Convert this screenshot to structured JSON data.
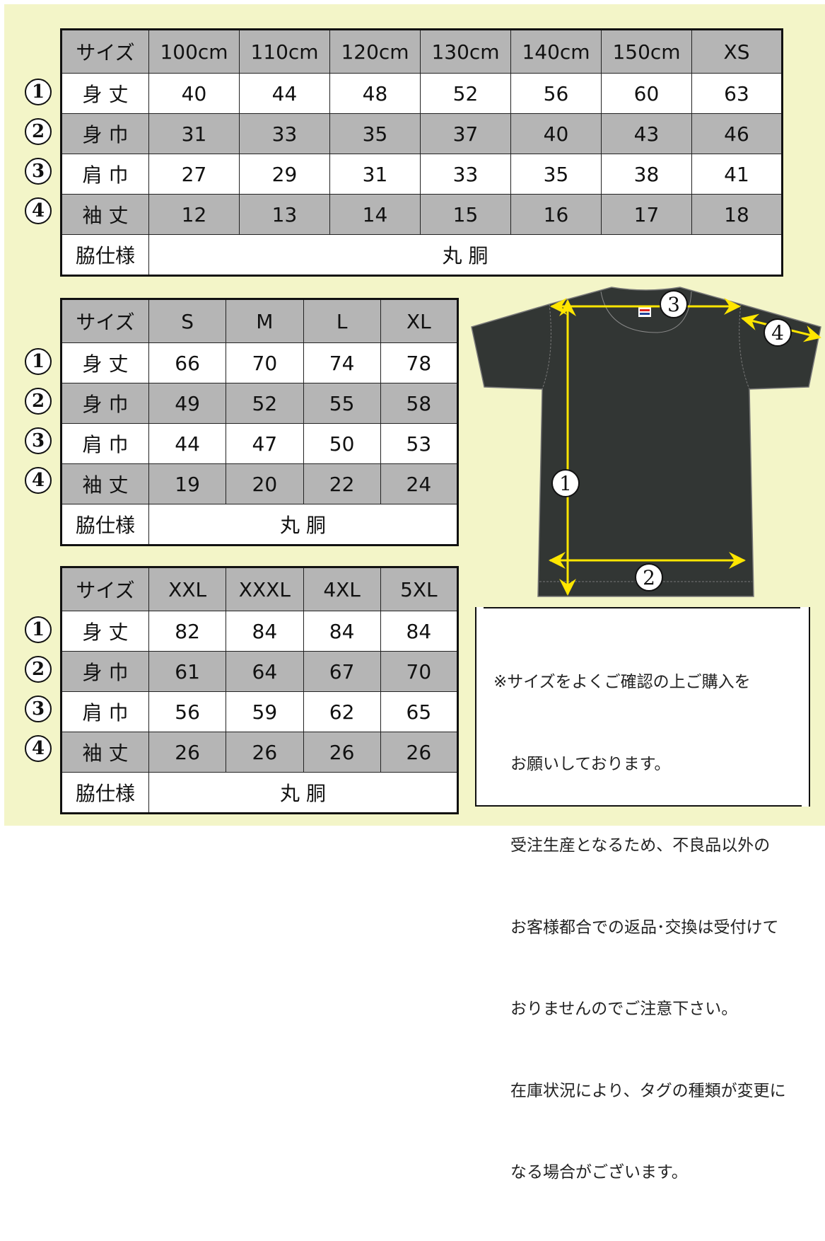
{
  "colors": {
    "background": "#f3f5c8",
    "header_gray": "#b5b5b5",
    "shirt": "#323634",
    "arrow": "#ffe600"
  },
  "tables": [
    {
      "header": [
        "サイズ",
        "100cm",
        "110cm",
        "120cm",
        "130cm",
        "140cm",
        "150cm",
        "XS"
      ],
      "rows": [
        {
          "num": "1",
          "label": "身 丈",
          "values": [
            "40",
            "44",
            "48",
            "52",
            "56",
            "60",
            "63"
          ]
        },
        {
          "num": "2",
          "label": "身 巾",
          "values": [
            "31",
            "33",
            "35",
            "37",
            "40",
            "43",
            "46"
          ]
        },
        {
          "num": "3",
          "label": "肩 巾",
          "values": [
            "27",
            "29",
            "31",
            "33",
            "35",
            "38",
            "41"
          ]
        },
        {
          "num": "4",
          "label": "袖 丈",
          "values": [
            "12",
            "13",
            "14",
            "15",
            "16",
            "17",
            "18"
          ]
        }
      ],
      "side_label": "脇仕様",
      "side_value": "丸 胴"
    },
    {
      "header": [
        "サイズ",
        "S",
        "M",
        "L",
        "XL"
      ],
      "rows": [
        {
          "num": "1",
          "label": "身 丈",
          "values": [
            "66",
            "70",
            "74",
            "78"
          ]
        },
        {
          "num": "2",
          "label": "身 巾",
          "values": [
            "49",
            "52",
            "55",
            "58"
          ]
        },
        {
          "num": "3",
          "label": "肩 巾",
          "values": [
            "44",
            "47",
            "50",
            "53"
          ]
        },
        {
          "num": "4",
          "label": "袖 丈",
          "values": [
            "19",
            "20",
            "22",
            "24"
          ]
        }
      ],
      "side_label": "脇仕様",
      "side_value": "丸 胴"
    },
    {
      "header": [
        "サイズ",
        "XXL",
        "XXXL",
        "4XL",
        "5XL"
      ],
      "rows": [
        {
          "num": "1",
          "label": "身 丈",
          "values": [
            "82",
            "84",
            "84",
            "84"
          ]
        },
        {
          "num": "2",
          "label": "身 巾",
          "values": [
            "61",
            "64",
            "67",
            "70"
          ]
        },
        {
          "num": "3",
          "label": "肩 巾",
          "values": [
            "56",
            "59",
            "62",
            "65"
          ]
        },
        {
          "num": "4",
          "label": "袖 丈",
          "values": [
            "26",
            "26",
            "26",
            "26"
          ]
        }
      ],
      "side_label": "脇仕様",
      "side_value": "丸 胴"
    }
  ],
  "diagram": {
    "markers": [
      "1",
      "2",
      "3",
      "4"
    ]
  },
  "note": {
    "lines": [
      "※サイズをよくご確認の上ご購入を",
      "お願いしております。",
      "受注生産となるため、不良品以外の",
      "お客様都合での返品･交換は受付けて",
      "おりませんのでご注意下さい。",
      "在庫状況により、タグの種類が変更に",
      "なる場合がございます。"
    ]
  }
}
